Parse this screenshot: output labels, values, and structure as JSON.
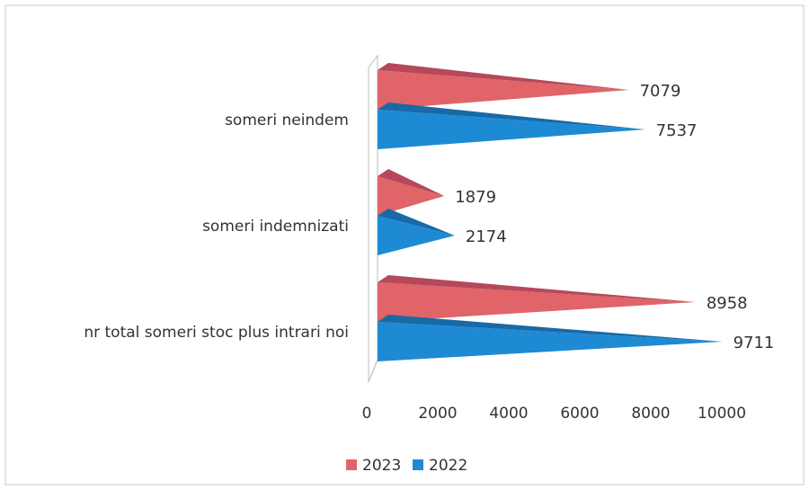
{
  "chart_data": {
    "type": "pyramid_bar",
    "categories": [
      "someri neindem",
      "someri indemnizati",
      "nr total  someri stoc plus intrari noi"
    ],
    "series": [
      {
        "name": "2023",
        "color": "#e06468",
        "values": [
          7079,
          1879,
          8958
        ]
      },
      {
        "name": "2022",
        "color": "#1e8ad4",
        "values": [
          7537,
          2174,
          9711
        ]
      }
    ],
    "xlim": [
      0,
      10000
    ],
    "xticks": [
      0,
      2000,
      4000,
      6000,
      8000,
      10000
    ],
    "legend": "bottom"
  }
}
